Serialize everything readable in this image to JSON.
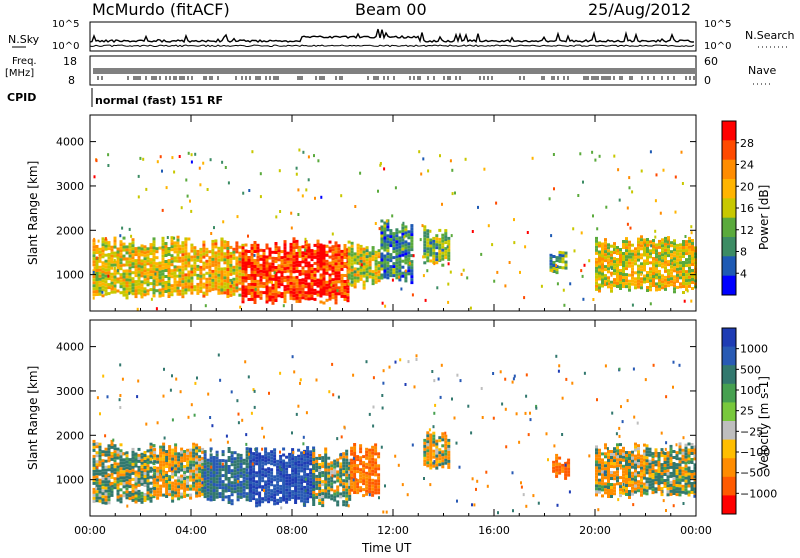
{
  "header": {
    "station": "McMurdo (fitACF)",
    "beam": "Beam 00",
    "date": "25/Aug/2012"
  },
  "noise_panel": {
    "left_label": "N.Sky",
    "right_label": "N.Search",
    "left_ticks": [
      "10^5",
      "10^0"
    ],
    "right_ticks": [
      "10^5",
      "10^0"
    ]
  },
  "freq_panel": {
    "left_label_1": "Freq.",
    "left_label_2": "[MHz]",
    "left_ticks": [
      "18",
      "8"
    ],
    "right_label": "Nave",
    "right_ticks": [
      "60",
      "0"
    ]
  },
  "cpid": {
    "label": "CPID",
    "text": "normal (fast) 151 RF"
  },
  "x_axis": {
    "label": "Time UT",
    "ticks": [
      "00:00",
      "04:00",
      "08:00",
      "12:00",
      "16:00",
      "20:00",
      "00:00"
    ]
  },
  "power_panel": {
    "ylabel": "Slant Range [km]",
    "yticks": [
      "1000",
      "2000",
      "3000",
      "4000"
    ],
    "cbar_label": "Power [dB]",
    "cbar_ticks": [
      "28",
      "24",
      "20",
      "16",
      "12",
      "8",
      "4"
    ],
    "cbar_colors": [
      "#ff0000",
      "#ff4a00",
      "#ff8c00",
      "#ffb400",
      "#c8c800",
      "#5aaa3c",
      "#3c8c64",
      "#1e5ab4",
      "#0000ff"
    ]
  },
  "velocity_panel": {
    "ylabel": "Slant Range [km]",
    "yticks": [
      "1000",
      "2000",
      "3000",
      "4000"
    ],
    "cbar_label": "Velocity [m s-1]",
    "cbar_ticks": [
      "1000",
      "500",
      "100",
      "25",
      "−25",
      "−100",
      "−500",
      "−1000"
    ],
    "cbar_colors": [
      "#1e3cb4",
      "#285ab4",
      "#32786e",
      "#46a050",
      "#78c83c",
      "#bebebe",
      "#ffbe00",
      "#ff8c00",
      "#ff5a00",
      "#ff0000"
    ]
  },
  "chart_data": [
    {
      "type": "heatmap",
      "title": "Power",
      "xlabel": "Time UT",
      "ylabel": "Slant Range [km]",
      "xlim": [
        0,
        24
      ],
      "ylim": [
        180,
        4600
      ],
      "colorbar": "Power [dB]",
      "regions": [
        {
          "t0": 0.1,
          "t1": 3.5,
          "r0": 550,
          "r1": 1750,
          "level": 18
        },
        {
          "t0": 3.5,
          "t1": 6.0,
          "r0": 600,
          "r1": 1700,
          "level": 20
        },
        {
          "t0": 6.0,
          "t1": 10.2,
          "r0": 450,
          "r1": 1700,
          "level": 29
        },
        {
          "t0": 10.2,
          "t1": 11.5,
          "r0": 800,
          "r1": 1650,
          "level": 16
        },
        {
          "t0": 11.5,
          "t1": 12.8,
          "r0": 900,
          "r1": 2100,
          "level": 8
        },
        {
          "t0": 13.2,
          "t1": 14.2,
          "r0": 1300,
          "r1": 2000,
          "level": 12
        },
        {
          "t0": 18.2,
          "t1": 18.8,
          "r0": 1100,
          "r1": 1500,
          "level": 10
        },
        {
          "t0": 20.0,
          "t1": 24.0,
          "r0": 700,
          "r1": 1750,
          "level": 18
        }
      ]
    },
    {
      "type": "heatmap",
      "title": "Velocity",
      "xlabel": "Time UT",
      "ylabel": "Slant Range [km]",
      "xlim": [
        0,
        24
      ],
      "ylim": [
        180,
        4600
      ],
      "colorbar": "Velocity [m s-1]",
      "regions": [
        {
          "t0": 0.1,
          "t1": 2.5,
          "r0": 550,
          "r1": 1750,
          "level": 100
        },
        {
          "t0": 2.5,
          "t1": 4.5,
          "r0": 600,
          "r1": 1700,
          "level": -100
        },
        {
          "t0": 4.5,
          "t1": 6.3,
          "r0": 550,
          "r1": 1600,
          "level": 500
        },
        {
          "t0": 6.3,
          "t1": 8.8,
          "r0": 500,
          "r1": 1650,
          "level": 1000
        },
        {
          "t0": 8.8,
          "t1": 10.3,
          "r0": 500,
          "r1": 1600,
          "level": 100
        },
        {
          "t0": 10.3,
          "t1": 11.4,
          "r0": 700,
          "r1": 1700,
          "level": -500
        },
        {
          "t0": 13.2,
          "t1": 14.2,
          "r0": 1300,
          "r1": 2000,
          "level": -100
        },
        {
          "t0": 18.3,
          "t1": 18.9,
          "r0": 1100,
          "r1": 1500,
          "level": -500
        },
        {
          "t0": 20.0,
          "t1": 22.0,
          "r0": 700,
          "r1": 1700,
          "level": -100
        },
        {
          "t0": 22.0,
          "t1": 24.0,
          "r0": 700,
          "r1": 1700,
          "level": 100
        }
      ]
    }
  ]
}
